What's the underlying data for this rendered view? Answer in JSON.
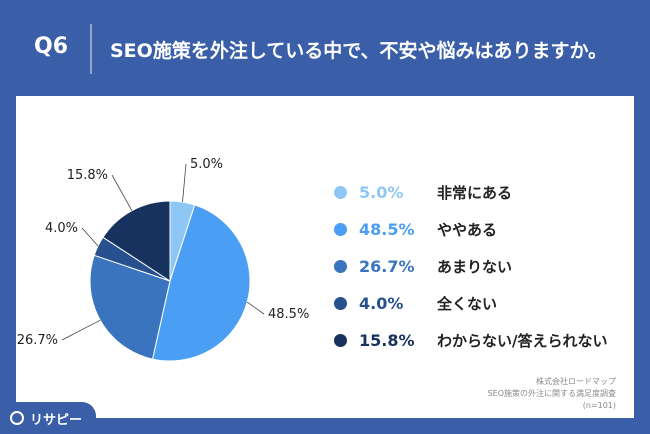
{
  "header": {
    "q_label": "Q6",
    "question": "SEO施策を外注している中で、不安や悩みはありますか。"
  },
  "chart_data": {
    "type": "pie",
    "slices": [
      {
        "label": "非常にある",
        "value": 5.0,
        "display": "5.0%",
        "color": "#8ec6f5"
      },
      {
        "label": "ややある",
        "value": 48.5,
        "display": "48.5%",
        "color": "#4a9ff5"
      },
      {
        "label": "あまりない",
        "value": 26.7,
        "display": "26.7%",
        "color": "#3a74be"
      },
      {
        "label": "全くない",
        "value": 4.0,
        "display": "4.0%",
        "color": "#27508e"
      },
      {
        "label": "わからない/答えられない",
        "value": 15.8,
        "display": "15.8%",
        "color": "#17325e"
      }
    ]
  },
  "footer": {
    "source": [
      "株式会社ロードマップ",
      "SEO施策の外注に関する満足度調査",
      "(n=101)"
    ],
    "brand": "リサピー"
  }
}
